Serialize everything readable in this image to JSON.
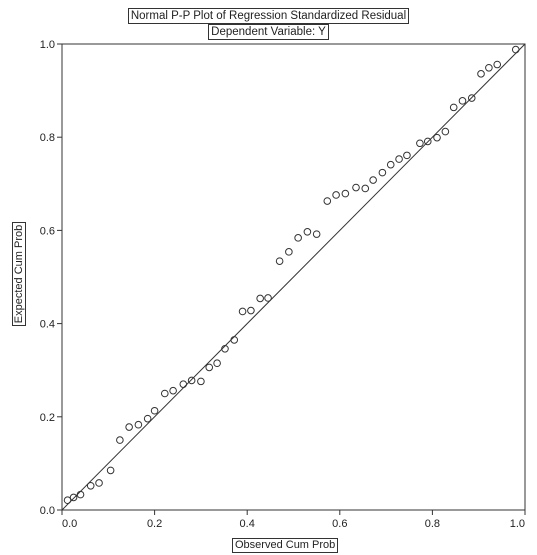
{
  "chart_data": {
    "type": "scatter",
    "title": "Normal P-P Plot of Regression Standardized Residual",
    "subtitle": "Dependent Variable: Y",
    "xlabel": "Observed Cum Prob",
    "ylabel": "Expected Cum Prob",
    "xlim": [
      0,
      1
    ],
    "ylim": [
      0,
      1
    ],
    "x_ticks": [
      "0.0",
      "0.2",
      "0.4",
      "0.6",
      "0.8",
      "1.0"
    ],
    "y_ticks": [
      "0.0",
      "0.2",
      "0.4",
      "0.6",
      "0.8",
      "1.0"
    ],
    "grid": false,
    "legend": "none",
    "reference_line": [
      [
        0,
        0
      ],
      [
        1,
        1
      ]
    ],
    "points": [
      [
        0.012,
        0.021
      ],
      [
        0.025,
        0.027
      ],
      [
        0.04,
        0.033
      ],
      [
        0.062,
        0.052
      ],
      [
        0.08,
        0.058
      ],
      [
        0.105,
        0.085
      ],
      [
        0.125,
        0.15
      ],
      [
        0.145,
        0.178
      ],
      [
        0.165,
        0.183
      ],
      [
        0.185,
        0.196
      ],
      [
        0.2,
        0.213
      ],
      [
        0.222,
        0.25
      ],
      [
        0.24,
        0.256
      ],
      [
        0.262,
        0.27
      ],
      [
        0.28,
        0.278
      ],
      [
        0.3,
        0.276
      ],
      [
        0.318,
        0.306
      ],
      [
        0.335,
        0.315
      ],
      [
        0.352,
        0.346
      ],
      [
        0.372,
        0.365
      ],
      [
        0.39,
        0.426
      ],
      [
        0.408,
        0.428
      ],
      [
        0.428,
        0.454
      ],
      [
        0.445,
        0.455
      ],
      [
        0.47,
        0.534
      ],
      [
        0.49,
        0.554
      ],
      [
        0.51,
        0.584
      ],
      [
        0.53,
        0.597
      ],
      [
        0.55,
        0.592
      ],
      [
        0.573,
        0.663
      ],
      [
        0.592,
        0.676
      ],
      [
        0.612,
        0.679
      ],
      [
        0.635,
        0.692
      ],
      [
        0.655,
        0.69
      ],
      [
        0.672,
        0.708
      ],
      [
        0.692,
        0.724
      ],
      [
        0.71,
        0.741
      ],
      [
        0.728,
        0.753
      ],
      [
        0.745,
        0.761
      ],
      [
        0.773,
        0.787
      ],
      [
        0.79,
        0.791
      ],
      [
        0.81,
        0.799
      ],
      [
        0.828,
        0.812
      ],
      [
        0.846,
        0.864
      ],
      [
        0.865,
        0.878
      ],
      [
        0.885,
        0.884
      ],
      [
        0.905,
        0.936
      ],
      [
        0.922,
        0.949
      ],
      [
        0.94,
        0.956
      ],
      [
        0.98,
        0.988
      ]
    ]
  }
}
